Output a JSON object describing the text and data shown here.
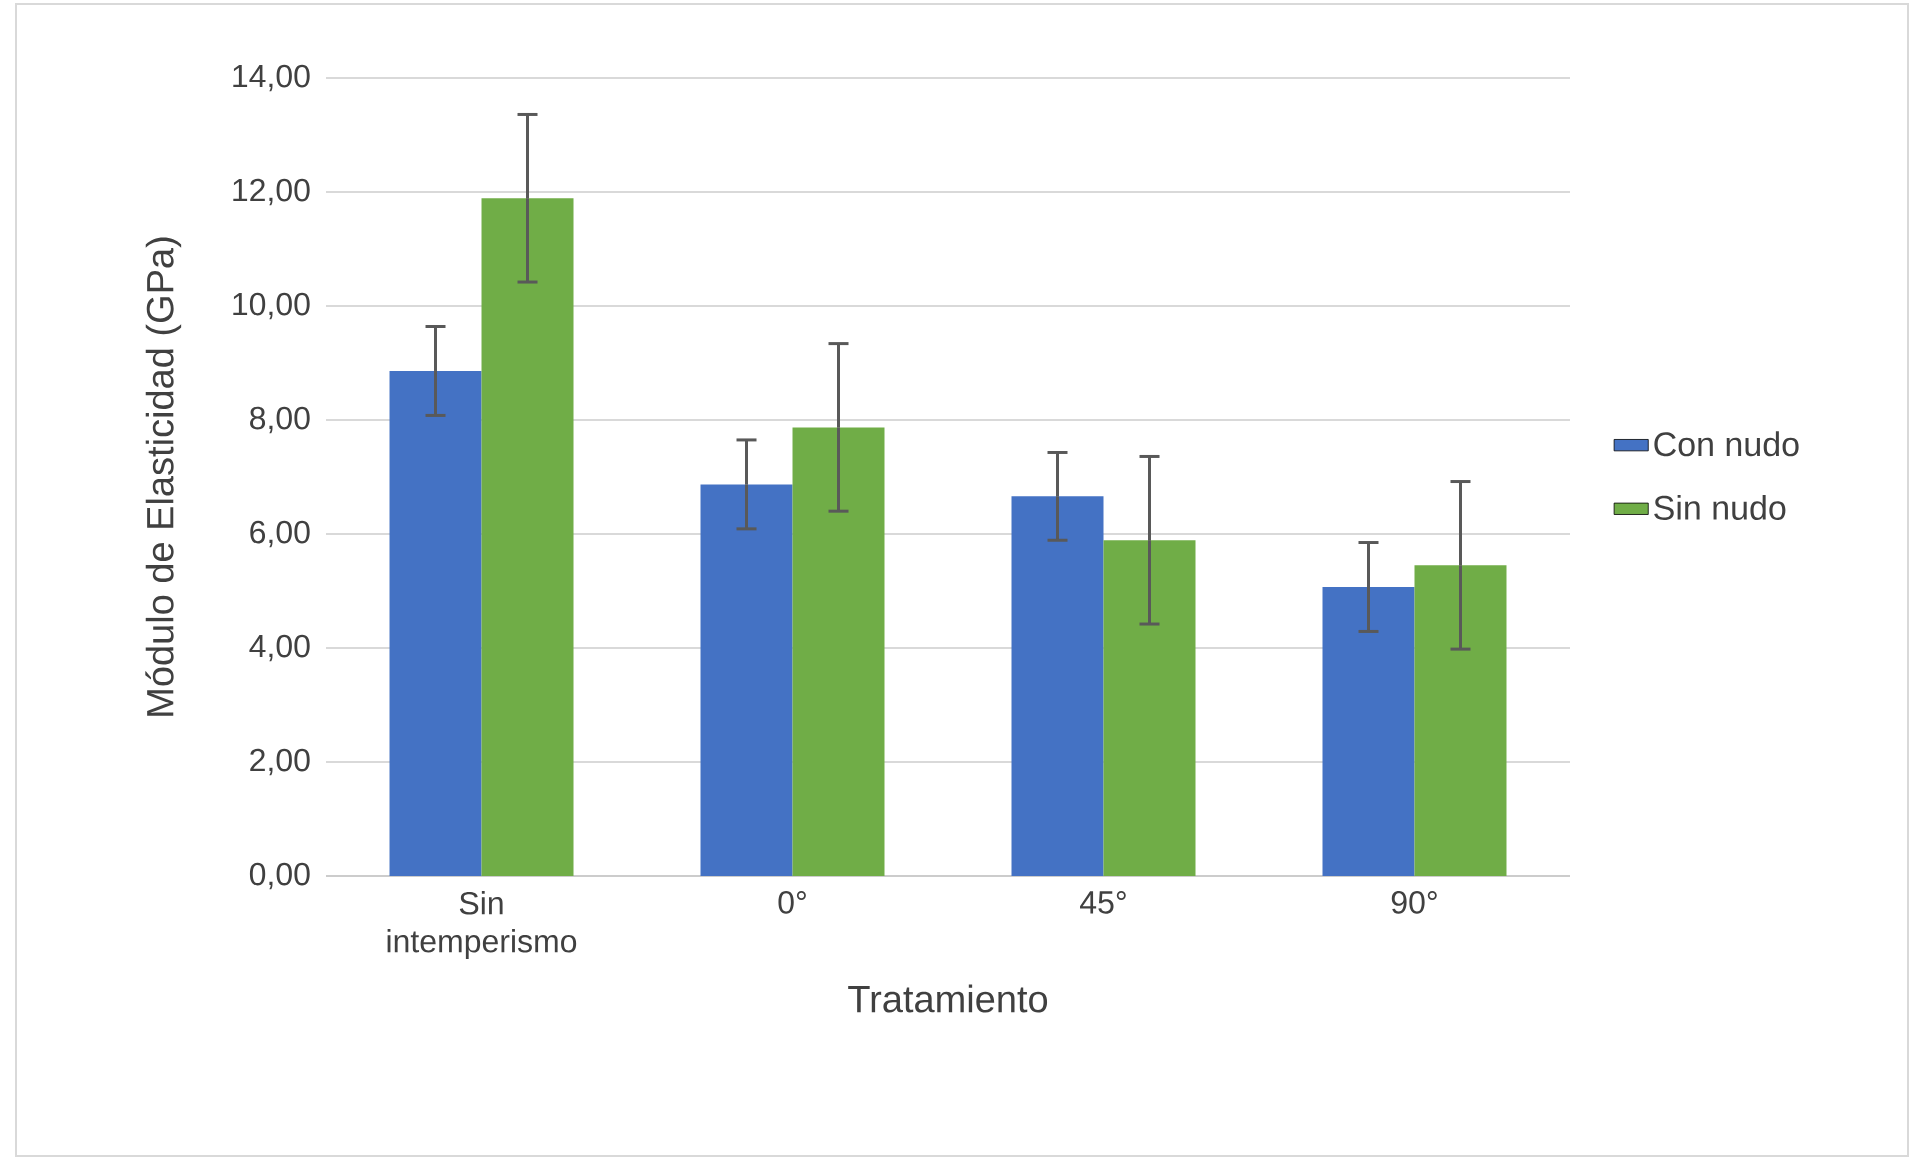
{
  "chart_data": {
    "type": "bar",
    "xlabel": "Tratamiento",
    "ylabel": "Módulo de Elasticidad (GPa)",
    "categories": [
      "Sin intemperismo",
      "0°",
      "45°",
      "90°"
    ],
    "series": [
      {
        "name": "Con nudo",
        "color": "#4472c4",
        "values": [
          8.86,
          6.87,
          6.66,
          5.07
        ],
        "errors": [
          0.78,
          0.78,
          0.77,
          0.78
        ]
      },
      {
        "name": "Sin nudo",
        "color": "#70ad47",
        "values": [
          11.89,
          7.87,
          5.89,
          5.45
        ],
        "errors": [
          1.47,
          1.47,
          1.47,
          1.47
        ]
      }
    ],
    "ylim": [
      0,
      14
    ],
    "yticks": [
      {
        "value": 0,
        "label": "0,00"
      },
      {
        "value": 2,
        "label": "2,00"
      },
      {
        "value": 4,
        "label": "4,00"
      },
      {
        "value": 6,
        "label": "6,00"
      },
      {
        "value": 8,
        "label": "8,00"
      },
      {
        "value": 10,
        "label": "10,00"
      },
      {
        "value": 12,
        "label": "12,00"
      },
      {
        "value": 14,
        "label": "14,00"
      }
    ],
    "grid": "y",
    "legend": "right"
  }
}
